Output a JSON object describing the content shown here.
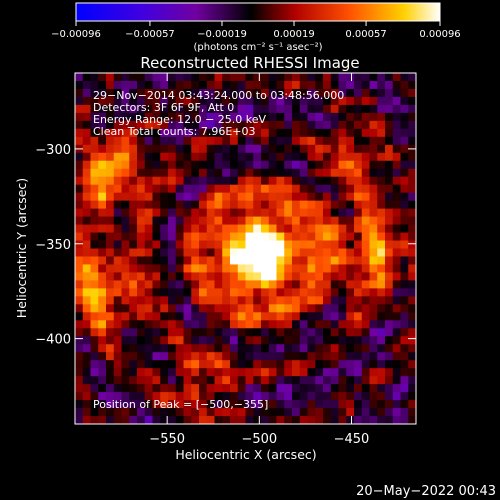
{
  "chart_data": {
    "type": "heatmap",
    "title": "Reconstructed RHESSI Image",
    "xlabel": "Heliocentric X (arcsec)",
    "ylabel": "Heliocentric Y (arcsec)",
    "xlim": [
      -600,
      -415
    ],
    "ylim": [
      -445,
      -260
    ],
    "x_ticks": [
      -550,
      -500,
      -450
    ],
    "y_ticks": [
      -300,
      -350,
      -400
    ],
    "x_tick_labels": [
      "−550",
      "−500",
      "−450"
    ],
    "y_tick_labels": [
      "−300",
      "−350",
      "−400"
    ],
    "colorbar": {
      "range": [
        -0.00096,
        0.00096
      ],
      "ticks": [
        -0.00096,
        -0.00057,
        -0.00019,
        0.00019,
        0.00057,
        0.00096
      ],
      "tick_labels": [
        "−0.00096",
        "−0.00057",
        "−0.00019",
        "0.00019",
        "0.00057",
        "0.00096"
      ],
      "units_label": "(photons cm⁻² s⁻¹ asec⁻²)",
      "colors": [
        "#0000ff",
        "#8000c0",
        "#000000",
        "#c00000",
        "#ff6000",
        "#ffd000",
        "#ffffff"
      ]
    },
    "annotations": [
      "29−Nov−2014 03:43:24.000 to 03:48:56.000",
      "Detectors: 3F 6F 9F, Att 0",
      "Energy Range: 12.0 − 25.0 keV",
      "Clean    Total counts: 7.96E+03"
    ],
    "peak_label": "Position of Peak = [−500,−355]",
    "peak": [
      -500,
      -355
    ],
    "grid": false
  },
  "timestamp": "20−May−2022 00:43"
}
